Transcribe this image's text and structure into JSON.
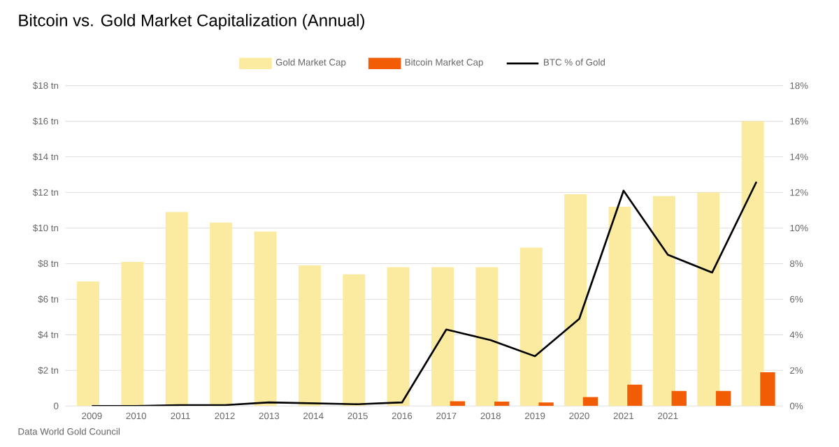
{
  "chart_data": {
    "type": "bar",
    "title": "Bitcoin vs. Gold Market Capitalization (Annual)",
    "annotations": [
      "Data World Gold Council"
    ],
    "categories": [
      "2009",
      "2010",
      "2011",
      "2012",
      "2013",
      "2014",
      "2015",
      "2016",
      "2017",
      "2018",
      "2019",
      "2020",
      "2021",
      "2021",
      null,
      null
    ],
    "series": [
      {
        "name": "Gold Market Cap",
        "color": "#fbeba0",
        "values": [
          7.0,
          8.1,
          10.9,
          10.3,
          9.8,
          7.9,
          7.4,
          7.8,
          7.8,
          7.8,
          8.9,
          11.9,
          11.2,
          11.8,
          12.0,
          16.0
        ]
      },
      {
        "name": "Bitcoin Market Cap",
        "color": "#f25c05",
        "values": [
          0,
          0,
          0,
          0,
          0,
          0,
          0,
          0,
          0.27,
          0.25,
          0.2,
          0.5,
          1.2,
          0.85,
          0.85,
          1.9
        ]
      },
      {
        "name": "BTC % of Gold",
        "type": "line",
        "axis": "y2",
        "color": "#000000",
        "values": [
          0,
          0,
          0.05,
          0.05,
          0.2,
          0.15,
          0.1,
          0.2,
          4.3,
          3.7,
          2.8,
          4.9,
          12.1,
          8.5,
          7.5,
          12.6
        ]
      }
    ],
    "ylim": [
      0,
      18
    ],
    "yticks": [
      0,
      {
        "value": 2,
        "label": "$2 tn"
      },
      {
        "value": 4,
        "label": "$4 tn"
      },
      {
        "value": 6,
        "label": "$6 tn"
      },
      {
        "value": 8,
        "label": "$8 tn"
      },
      {
        "value": 10,
        "label": "$10 tn"
      },
      {
        "value": 12,
        "label": "$12 tn"
      },
      {
        "value": 14,
        "label": "$14 tn"
      },
      {
        "value": 16,
        "label": "$16 tn"
      },
      {
        "value": 18,
        "label": "$18 tn"
      }
    ],
    "y2lim": [
      0,
      18
    ],
    "y2ticks": [
      {
        "value": 0,
        "label": "0%"
      },
      {
        "value": 2,
        "label": "2%"
      },
      {
        "value": 4,
        "label": "4%"
      },
      {
        "value": 6,
        "label": "6%"
      },
      {
        "value": 8,
        "label": "8%"
      },
      {
        "value": 10,
        "label": "10%"
      },
      {
        "value": 12,
        "label": "12%"
      },
      {
        "value": 14,
        "label": "14%"
      },
      {
        "value": 16,
        "label": "16%"
      },
      {
        "value": 18,
        "label": "18%"
      }
    ],
    "grid": "y",
    "legend": "top"
  }
}
